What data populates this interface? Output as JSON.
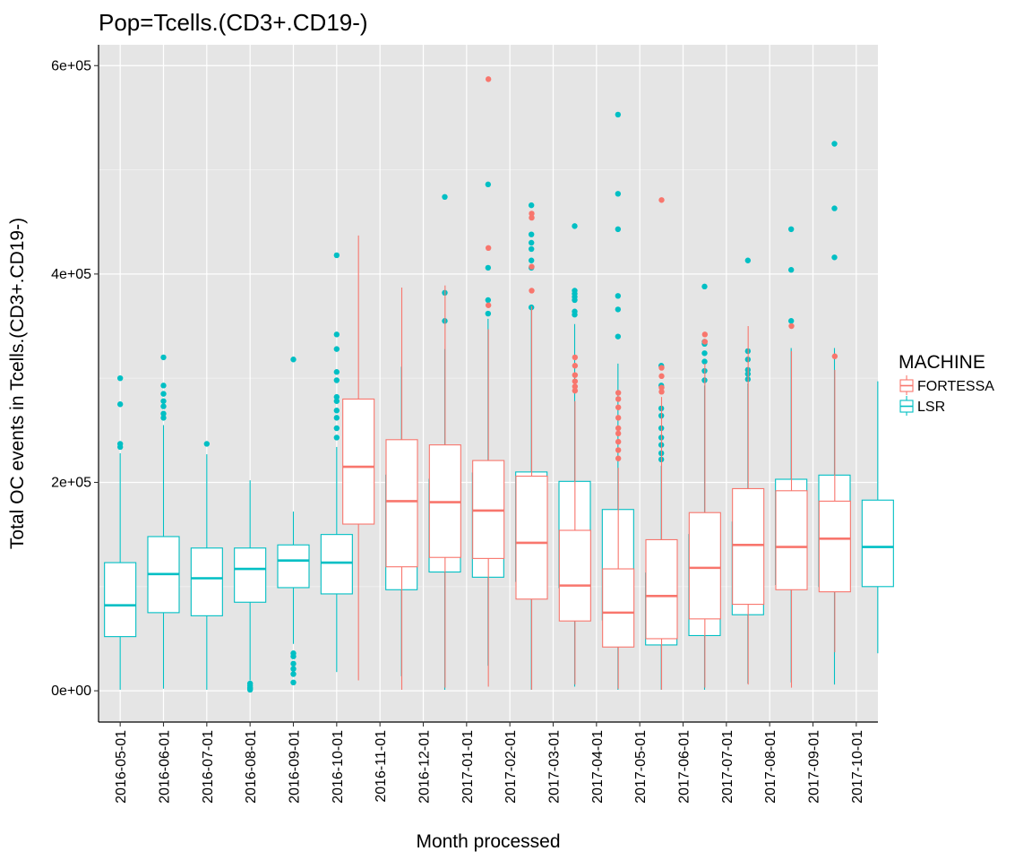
{
  "chart_data": {
    "type": "boxplot",
    "title": "Pop=Tcells.(CD3+.CD19-)",
    "xlabel": "Month processed",
    "ylabel": "Total OC events in Tcells.(CD3+.CD19-)",
    "ylim": [
      -30000,
      620000
    ],
    "yticks": [
      0,
      200000,
      400000,
      600000
    ],
    "ytick_labels": [
      "0e+00",
      "2e+05",
      "4e+05",
      "6e+05"
    ],
    "legend": {
      "title": "MACHINE",
      "position": "right",
      "entries": [
        {
          "name": "FORTESSA",
          "color": "#F8766D"
        },
        {
          "name": "LSR",
          "color": "#00BFC4"
        }
      ]
    },
    "categories": [
      "2016-05-01",
      "2016-06-01",
      "2016-07-01",
      "2016-08-01",
      "2016-09-01",
      "2016-10-01",
      "2016-11-01",
      "2016-12-01",
      "2017-01-01",
      "2017-02-01",
      "2017-03-01",
      "2017-04-01",
      "2017-05-01",
      "2017-06-01",
      "2017-07-01",
      "2017-08-01",
      "2017-09-01",
      "2017-10-01"
    ],
    "boxes": [
      {
        "category": "2016-05-01",
        "group": "LSR",
        "min": 1000,
        "q1": 52000,
        "median": 82000,
        "q3": 123000,
        "max": 228000,
        "outliers": [
          234000,
          237000,
          275000,
          300000
        ]
      },
      {
        "category": "2016-06-01",
        "group": "LSR",
        "min": 2000,
        "q1": 75000,
        "median": 112000,
        "q3": 148000,
        "max": 255000,
        "outliers": [
          262000,
          266000,
          273000,
          278000,
          285000,
          293000,
          320000
        ]
      },
      {
        "category": "2016-07-01",
        "group": "LSR",
        "min": 1000,
        "q1": 72000,
        "median": 108000,
        "q3": 137000,
        "max": 227000,
        "outliers": [
          237000
        ]
      },
      {
        "category": "2016-08-01",
        "group": "LSR",
        "min": 10000,
        "q1": 85000,
        "median": 117000,
        "q3": 137000,
        "max": 202000,
        "outliers": [
          1000,
          2000,
          3000,
          5000,
          7000
        ]
      },
      {
        "category": "2016-09-01",
        "group": "LSR",
        "min": 45000,
        "q1": 99000,
        "median": 125000,
        "q3": 140000,
        "max": 172000,
        "outliers": [
          8000,
          16000,
          21000,
          26000,
          33000,
          36000,
          318000
        ]
      },
      {
        "category": "2016-10-01",
        "group": "LSR",
        "min": 18000,
        "q1": 93000,
        "median": 123000,
        "q3": 150000,
        "max": 234000,
        "outliers": [
          243000,
          252000,
          262000,
          269000,
          278000,
          282000,
          298000,
          306000,
          328000,
          342000,
          418000
        ]
      },
      {
        "category": "2016-11-01",
        "group": "FORTESSA",
        "min": 10000,
        "q1": 160000,
        "median": 215000,
        "q3": 280000,
        "max": 437000,
        "outliers": []
      },
      {
        "category": "2016-11-01",
        "group": "LSR",
        "min": 14000,
        "q1": 97000,
        "median": 149000,
        "q3": 207000,
        "max": 311000,
        "outliers": []
      },
      {
        "category": "2016-12-01",
        "group": "FORTESSA",
        "min": 1000,
        "q1": 119000,
        "median": 182000,
        "q3": 241000,
        "max": 387000,
        "outliers": []
      },
      {
        "category": "2016-12-01",
        "group": "LSR",
        "min": 1000,
        "q1": 114000,
        "median": 148000,
        "q3": 203000,
        "max": 328000,
        "outliers": [
          355000,
          382000,
          474000
        ]
      },
      {
        "category": "2017-01-01",
        "group": "FORTESSA",
        "min": 3000,
        "q1": 128000,
        "median": 181000,
        "q3": 236000,
        "max": 389000,
        "outliers": []
      },
      {
        "category": "2017-01-01",
        "group": "LSR",
        "min": 24000,
        "q1": 109000,
        "median": 159000,
        "q3": 209000,
        "max": 357000,
        "outliers": [
          362000,
          375000,
          406000,
          486000
        ]
      },
      {
        "category": "2017-02-01",
        "group": "FORTESSA",
        "min": 4000,
        "q1": 127000,
        "median": 173000,
        "q3": 221000,
        "max": 347000,
        "outliers": [
          370000,
          425000,
          587000
        ]
      },
      {
        "category": "2017-02-01",
        "group": "LSR",
        "min": 1000,
        "q1": 105000,
        "median": 160000,
        "q3": 210000,
        "max": 369000,
        "outliers": [
          368000,
          406000,
          413000,
          424000,
          430000,
          438000,
          466000
        ]
      },
      {
        "category": "2017-03-01",
        "group": "FORTESSA",
        "min": 1000,
        "q1": 88000,
        "median": 142000,
        "q3": 206000,
        "max": 369000,
        "outliers": [
          384000,
          407000,
          454000,
          458000
        ]
      },
      {
        "category": "2017-03-01",
        "group": "LSR",
        "min": 4000,
        "q1": 99000,
        "median": 144000,
        "q3": 201000,
        "max": 352000,
        "outliers": [
          361000,
          364000,
          375000,
          378000,
          381000,
          384000,
          446000
        ]
      },
      {
        "category": "2017-04-01",
        "group": "FORTESSA",
        "min": 6000,
        "q1": 67000,
        "median": 101000,
        "q3": 154000,
        "max": 278000,
        "outliers": [
          288000,
          292000,
          297000,
          303000,
          312000,
          320000
        ]
      },
      {
        "category": "2017-04-01",
        "group": "LSR",
        "min": 1000,
        "q1": 68000,
        "median": 113000,
        "q3": 174000,
        "max": 314000,
        "outliers": [
          340000,
          366000,
          379000,
          443000,
          477000,
          553000
        ]
      },
      {
        "category": "2017-05-01",
        "group": "FORTESSA",
        "min": 2000,
        "q1": 42000,
        "median": 75000,
        "q3": 117000,
        "max": 214000,
        "outliers": [
          223000,
          231000,
          239000,
          247000,
          252000,
          262000,
          272000,
          280000,
          286000
        ]
      },
      {
        "category": "2017-05-01",
        "group": "LSR",
        "min": 1000,
        "q1": 44000,
        "median": 75000,
        "q3": 113000,
        "max": 216000,
        "outliers": [
          222000,
          228000,
          236000,
          243000,
          252000,
          264000,
          271000,
          293000,
          312000
        ]
      },
      {
        "category": "2017-06-01",
        "group": "FORTESSA",
        "min": 1000,
        "q1": 50000,
        "median": 91000,
        "q3": 145000,
        "max": 282000,
        "outliers": [
          287000,
          291000,
          302000,
          310000,
          471000
        ]
      },
      {
        "category": "2017-06-01",
        "group": "LSR",
        "min": 1000,
        "q1": 53000,
        "median": 96000,
        "q3": 150000,
        "max": 293000,
        "outliers": [
          298000,
          307000,
          316000,
          324000,
          333000,
          335000,
          388000
        ]
      },
      {
        "category": "2017-07-01",
        "group": "FORTESSA",
        "min": 3000,
        "q1": 69000,
        "median": 118000,
        "q3": 171000,
        "max": 314000,
        "outliers": [
          335000,
          342000
        ]
      },
      {
        "category": "2017-07-01",
        "group": "LSR",
        "min": 7000,
        "q1": 73000,
        "median": 107000,
        "q3": 162000,
        "max": 295000,
        "outliers": [
          299000,
          304000,
          308000,
          318000,
          326000,
          413000
        ]
      },
      {
        "category": "2017-08-01",
        "group": "FORTESSA",
        "min": 6000,
        "q1": 83000,
        "median": 140000,
        "q3": 194000,
        "max": 350000,
        "outliers": []
      },
      {
        "category": "2017-08-01",
        "group": "LSR",
        "min": 8000,
        "q1": 102000,
        "median": 150000,
        "q3": 203000,
        "max": 329000,
        "outliers": [
          355000,
          404000,
          443000
        ]
      },
      {
        "category": "2017-09-01",
        "group": "FORTESSA",
        "min": 3000,
        "q1": 97000,
        "median": 138000,
        "q3": 192000,
        "max": 326000,
        "outliers": [
          350000
        ]
      },
      {
        "category": "2017-09-01",
        "group": "LSR",
        "min": 6000,
        "q1": 100000,
        "median": 151000,
        "q3": 207000,
        "max": 329000,
        "outliers": [
          416000,
          463000,
          525000
        ]
      },
      {
        "category": "2017-10-01",
        "group": "FORTESSA",
        "min": 37000,
        "q1": 95000,
        "median": 146000,
        "q3": 182000,
        "max": 308000,
        "outliers": [
          321000
        ]
      },
      {
        "category": "2017-10-01",
        "group": "LSR",
        "min": 36000,
        "q1": 100000,
        "median": 138000,
        "q3": 183000,
        "max": 297000,
        "outliers": []
      }
    ],
    "grid": true
  }
}
